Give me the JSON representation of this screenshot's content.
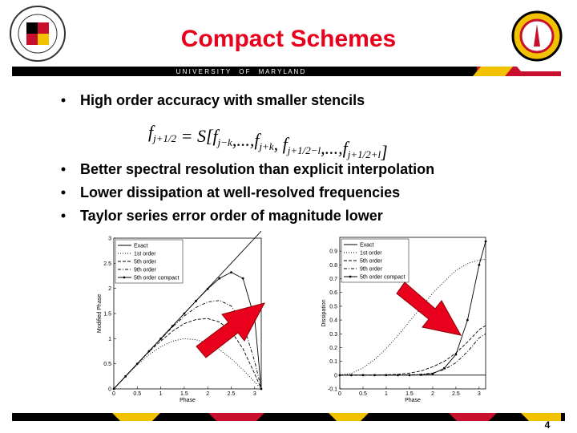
{
  "header": {
    "title": "Compact Schemes",
    "banner": "U N I V E R S I T Y     O F     M A R Y L A N D"
  },
  "bullets_top": [
    "High order accuracy with smaller stencils"
  ],
  "formula": [
    {
      "text": "f",
      "sub": "j+1/2"
    },
    {
      "text": " = S[f",
      "sub": "j−k"
    },
    {
      "text": ",...,f",
      "sub": "j+k"
    },
    {
      "text": ", f",
      "sub": "j+1/2−l"
    },
    {
      "text": ",...,f",
      "sub": "j+1/2+l"
    },
    {
      "text": "]"
    }
  ],
  "bullets": [
    "Better spectral resolution than explicit interpolation",
    "Lower dissipation at well-resolved frequencies",
    "Taylor series error order of magnitude lower"
  ],
  "page_number": "4",
  "chart_data": [
    {
      "type": "line",
      "xlabel": "Phase",
      "ylabel": "Modified Phase",
      "legend": "upper left",
      "x": [
        0,
        0.25,
        0.5,
        0.75,
        1,
        1.25,
        1.5,
        1.75,
        2,
        2.25,
        2.5,
        2.75,
        3,
        3.14
      ],
      "xlim": [
        0,
        3.14
      ],
      "xticks": [
        0,
        0.5,
        1,
        1.5,
        2,
        2.5,
        3
      ],
      "ylim": [
        0,
        3
      ],
      "yticks": [
        0,
        0.5,
        1,
        1.5,
        2,
        2.5,
        3
      ],
      "series": [
        {
          "name": "Exact",
          "color": "#000000",
          "style": "solid",
          "values": [
            0,
            0.25,
            0.5,
            0.75,
            1,
            1.25,
            1.5,
            1.75,
            2,
            2.25,
            2.5,
            2.75,
            3,
            3.14
          ]
        },
        {
          "name": "1st order",
          "color": "#000000",
          "style": "dotted",
          "values": [
            0,
            0.25,
            0.48,
            0.68,
            0.84,
            0.95,
            1.0,
            0.98,
            0.91,
            0.78,
            0.6,
            0.38,
            0.14,
            0
          ]
        },
        {
          "name": "5th order",
          "color": "#000000",
          "style": "dashed",
          "values": [
            0,
            0.25,
            0.5,
            0.74,
            0.95,
            1.15,
            1.3,
            1.38,
            1.4,
            1.33,
            1.15,
            0.8,
            0.3,
            0
          ]
        },
        {
          "name": "9th order",
          "color": "#000000",
          "style": "dashdot",
          "values": [
            0,
            0.25,
            0.5,
            0.75,
            0.99,
            1.23,
            1.45,
            1.62,
            1.73,
            1.76,
            1.65,
            1.3,
            0.55,
            0
          ]
        },
        {
          "name": "5th order compact",
          "color": "#000000",
          "style": "markers",
          "values": [
            0,
            0.25,
            0.5,
            0.75,
            1,
            1.25,
            1.5,
            1.75,
            1.99,
            2.2,
            2.32,
            2.2,
            1.4,
            0
          ]
        }
      ]
    },
    {
      "type": "line",
      "xlabel": "Phase",
      "ylabel": "Dissipation",
      "legend": "upper left",
      "x": [
        0,
        0.25,
        0.5,
        0.75,
        1,
        1.25,
        1.5,
        1.75,
        2,
        2.25,
        2.5,
        2.75,
        3,
        3.14
      ],
      "xlim": [
        0,
        3.14
      ],
      "xticks": [
        0,
        0.5,
        1,
        1.5,
        2,
        2.5,
        3
      ],
      "ylim": [
        -0.1,
        1
      ],
      "yticks": [
        -0.1,
        0,
        0.1,
        0.2,
        0.3,
        0.4,
        0.5,
        0.6,
        0.7,
        0.8,
        0.9
      ],
      "series": [
        {
          "name": "Exact",
          "color": "#000000",
          "style": "solid",
          "values": [
            0,
            0,
            0,
            0,
            0,
            0,
            0,
            0,
            0,
            0,
            0,
            0,
            0,
            0
          ]
        },
        {
          "name": "1st order",
          "color": "#000000",
          "style": "dotted",
          "values": [
            0,
            0.013,
            0.052,
            0.113,
            0.193,
            0.286,
            0.39,
            0.49,
            0.595,
            0.68,
            0.76,
            0.81,
            0.835,
            0.84
          ]
        },
        {
          "name": "5th order",
          "color": "#000000",
          "style": "dashed",
          "values": [
            0,
            0,
            0,
            0,
            0.002,
            0.006,
            0.015,
            0.03,
            0.06,
            0.1,
            0.16,
            0.24,
            0.33,
            0.36
          ]
        },
        {
          "name": "9th order",
          "color": "#000000",
          "style": "dashdot",
          "values": [
            0,
            0,
            0,
            0,
            0,
            0,
            0.002,
            0.006,
            0.015,
            0.04,
            0.09,
            0.17,
            0.27,
            0.3
          ]
        },
        {
          "name": "5th order compact",
          "color": "#000000",
          "style": "markers",
          "values": [
            0,
            0,
            0,
            0,
            0,
            0,
            0,
            0.002,
            0.01,
            0.05,
            0.15,
            0.4,
            0.8,
            0.97
          ]
        }
      ]
    }
  ]
}
